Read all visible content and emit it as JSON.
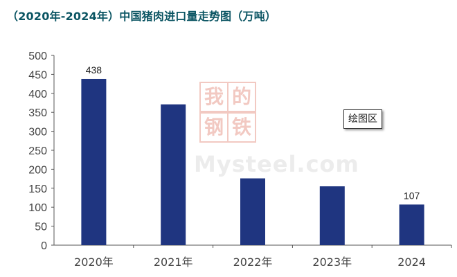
{
  "chart_data": {
    "type": "bar",
    "title": "（2020年-2024年）中国猪肉进口量走势图（万吨）",
    "categories": [
      "2020年",
      "2021年",
      "2022年",
      "2023年",
      "2024"
    ],
    "values": [
      438,
      371,
      176,
      155,
      107
    ],
    "data_labels": [
      "438",
      "",
      "",
      "",
      "107"
    ],
    "ylim": [
      0,
      500
    ],
    "yticks": [
      "0",
      "50",
      "100",
      "150",
      "200",
      "250",
      "300",
      "350",
      "400",
      "450",
      "500"
    ],
    "grid": false,
    "bar_color": "#1f3580",
    "annotation": "绘图区"
  },
  "watermark": {
    "chars": [
      "我",
      "的",
      "钢",
      "铁"
    ],
    "text": "Mysteel.com"
  }
}
